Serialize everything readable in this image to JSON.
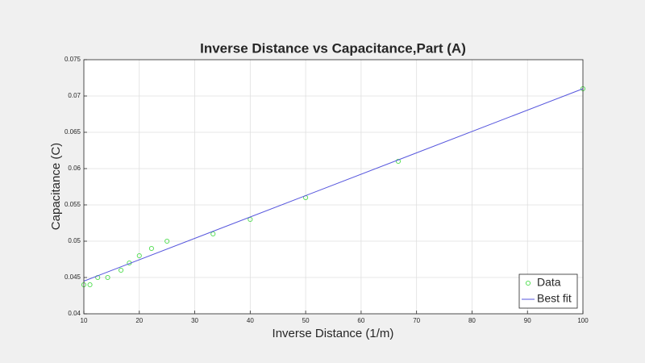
{
  "chart_data": {
    "type": "line",
    "title": "Inverse Distance vs Capacitance,Part (A)",
    "x_label": "Inverse Distance (1/m)",
    "y_label": "Capacitance (C)",
    "series": [
      {
        "name": "Data",
        "color": "#4ddc4d",
        "mode": "markers",
        "x": [
          10,
          11.1,
          12.5,
          14.3,
          16.7,
          18.2,
          20,
          22.2,
          25,
          33.3,
          40,
          50,
          66.7,
          100
        ],
        "values": [
          0.044,
          0.044,
          0.045,
          0.045,
          0.046,
          0.047,
          0.048,
          0.049,
          0.05,
          0.051,
          0.053,
          0.056,
          0.061,
          0.071
        ]
      },
      {
        "name": "Best fit",
        "color": "#5555dd",
        "mode": "line",
        "x": [
          10,
          100
        ],
        "values": [
          0.0445,
          0.071
        ]
      }
    ],
    "xlim": [
      10,
      100
    ],
    "xticks": [
      10,
      20,
      30,
      40,
      50,
      60,
      70,
      80,
      90,
      100
    ],
    "ylim": [
      0.04,
      0.075
    ],
    "yticks": [
      0.04,
      0.045,
      0.05,
      0.055,
      0.06,
      0.065,
      0.07,
      0.075
    ],
    "grid": true,
    "legend": "lower right"
  }
}
